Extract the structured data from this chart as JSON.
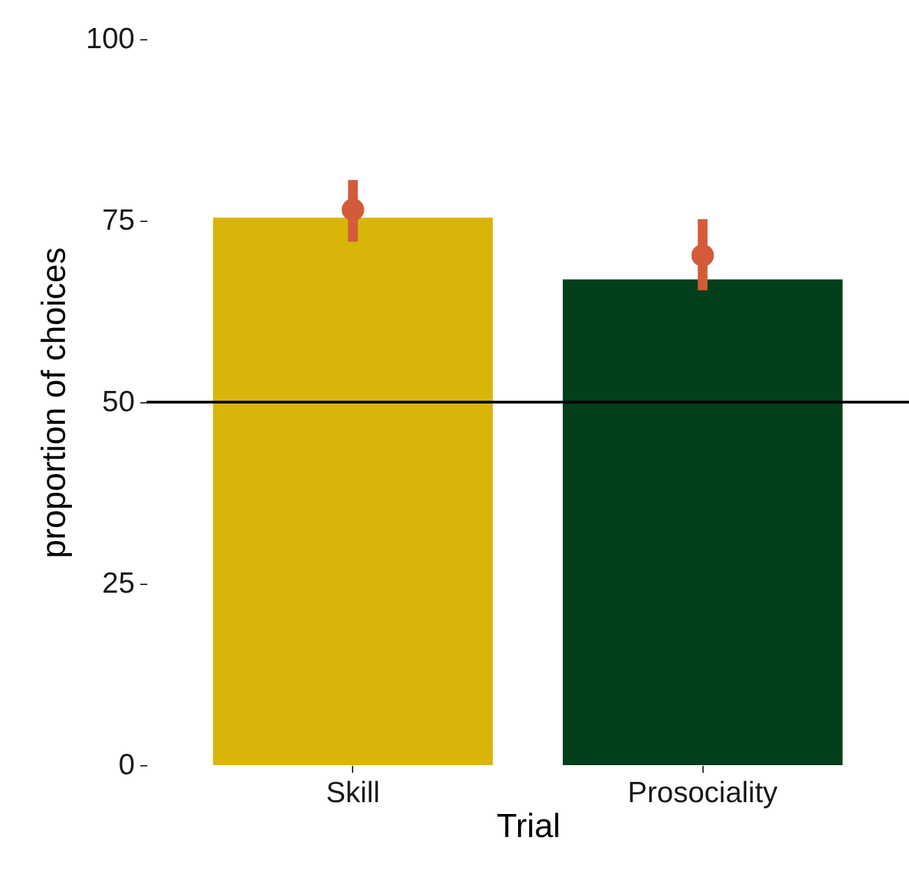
{
  "chart_data": {
    "type": "bar",
    "xlabel": "Trial",
    "ylabel": "proportion of choices",
    "categories": [
      "Skill",
      "Prosociality"
    ],
    "ylim": [
      0,
      100
    ],
    "yticks": [
      0,
      25,
      50,
      75,
      100
    ],
    "marker": "circle",
    "series": [
      {
        "colors": [
          "#d9b50a",
          "#033f1b"
        ],
        "values": [
          75.4,
          66.9
        ]
      },
      {
        "type": "scatter",
        "color": "#d35b3a",
        "x": [
          "Skill",
          "Prosociality"
        ],
        "values": [
          76.5,
          70.2
        ],
        "errors": [
          [
            72.1,
            80.6
          ],
          [
            65.4,
            75.2
          ]
        ]
      }
    ],
    "ref_lines": [
      {
        "axis": "y",
        "value": 50,
        "color": "#000000"
      }
    ]
  }
}
